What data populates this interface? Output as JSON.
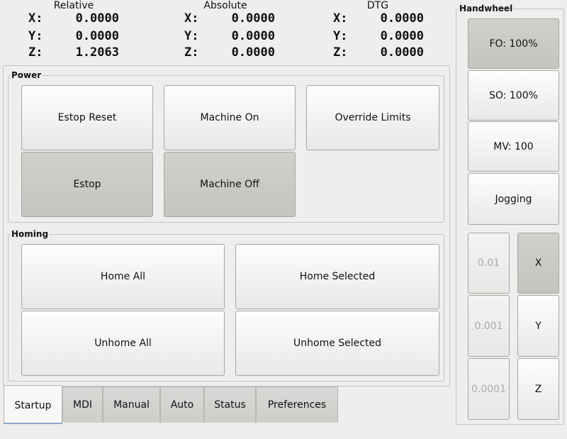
{
  "dro": [
    {
      "title": "Relative",
      "rows": [
        [
          "X:",
          "0.0000"
        ],
        [
          "Y:",
          "0.0000"
        ],
        [
          "Z:",
          "1.2063"
        ]
      ]
    },
    {
      "title": "Absolute",
      "rows": [
        [
          "X:",
          "0.0000"
        ],
        [
          "Y:",
          "0.0000"
        ],
        [
          "Z:",
          "0.0000"
        ]
      ]
    },
    {
      "title": "DTG",
      "rows": [
        [
          "X:",
          "0.0000"
        ],
        [
          "Y:",
          "0.0000"
        ],
        [
          "Z:",
          "0.0000"
        ]
      ]
    }
  ],
  "power": {
    "title": "Power",
    "estop_reset": "Estop Reset",
    "machine_on": "Machine On",
    "override_limits": "Override Limits",
    "estop": "Estop",
    "machine_off": "Machine Off"
  },
  "homing": {
    "title": "Homing",
    "home_all": "Home All",
    "home_selected": "Home Selected",
    "unhome_all": "Unhome All",
    "unhome_selected": "Unhome Selected"
  },
  "tabs": [
    "Startup",
    "MDI",
    "Manual",
    "Auto",
    "Status",
    "Preferences"
  ],
  "active_tab": "Startup",
  "handwheel": {
    "title": "Handwheel",
    "fo": "FO: 100%",
    "so": "SO: 100%",
    "mv": "MV: 100",
    "jogging": "Jogging",
    "increments": [
      "0.01",
      "0.001",
      "0.0001"
    ],
    "axes": [
      "X",
      "Y",
      "Z"
    ],
    "selected_axis": "X"
  }
}
